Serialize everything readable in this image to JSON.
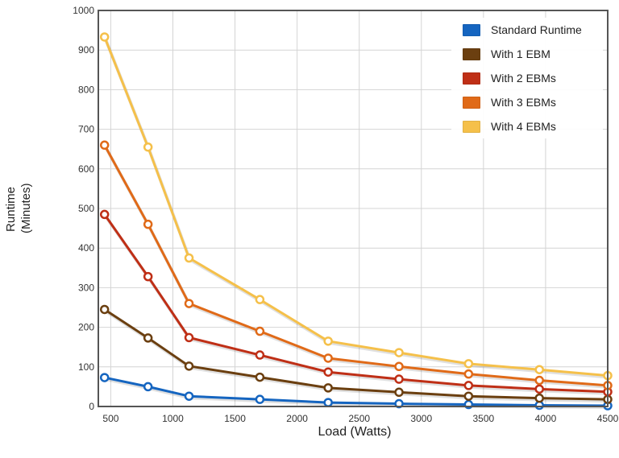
{
  "chart_data": {
    "type": "line",
    "xlabel": "Load (Watts)",
    "ylabel_line1": "Runtime",
    "ylabel_line2": "(Minutes)",
    "xlim": [
      400,
      4500
    ],
    "ylim": [
      0,
      1000
    ],
    "x_ticks": [
      500,
      1000,
      1500,
      2000,
      2500,
      3000,
      3500,
      4000,
      4500
    ],
    "y_ticks": [
      0,
      100,
      200,
      300,
      400,
      500,
      600,
      700,
      800,
      900,
      1000
    ],
    "grid": true,
    "legend_position": "top-right",
    "x": [
      450,
      800,
      1130,
      1700,
      2250,
      2820,
      3380,
      3950,
      4500
    ],
    "series": [
      {
        "name": "Standard Runtime",
        "color": "#1565c0",
        "values": [
          73,
          50,
          26,
          18,
          10,
          7,
          5,
          3,
          2
        ]
      },
      {
        "name": "With 1 EBM",
        "color": "#6b3f10",
        "values": [
          245,
          173,
          102,
          74,
          47,
          36,
          26,
          21,
          18
        ]
      },
      {
        "name": "With 2 EBMs",
        "color": "#bf2f16",
        "values": [
          485,
          328,
          174,
          130,
          87,
          69,
          53,
          44,
          37
        ]
      },
      {
        "name": "With 3 EBMs",
        "color": "#e06a18",
        "values": [
          660,
          460,
          260,
          190,
          122,
          101,
          82,
          66,
          53
        ]
      },
      {
        "name": "With 4 EBMs",
        "color": "#f5c04a",
        "values": [
          933,
          655,
          375,
          270,
          165,
          136,
          108,
          93,
          78
        ]
      }
    ]
  }
}
